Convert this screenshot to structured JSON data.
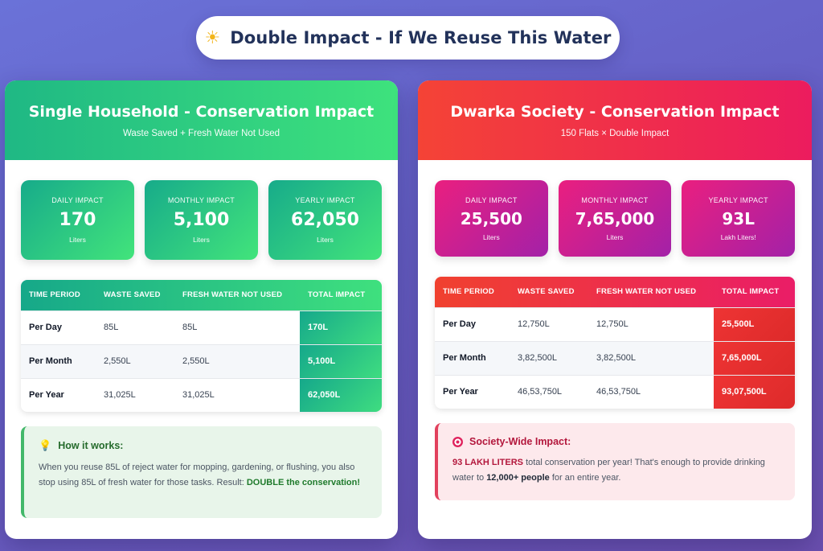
{
  "banner": {
    "title": "Double Impact - If We Reuse This Water",
    "icon": "sun-icon"
  },
  "household": {
    "title": "Single Household - Conservation Impact",
    "subtitle": "Waste Saved + Fresh Water Not Used",
    "stats": [
      {
        "label": "DAILY IMPACT",
        "value": "170",
        "unit": "Liters"
      },
      {
        "label": "MONTHLY IMPACT",
        "value": "5,100",
        "unit": "Liters"
      },
      {
        "label": "YEARLY IMPACT",
        "value": "62,050",
        "unit": "Liters"
      }
    ],
    "table": {
      "headers": [
        "TIME PERIOD",
        "WASTE SAVED",
        "FRESH WATER NOT USED",
        "TOTAL IMPACT"
      ],
      "rows": [
        [
          "Per Day",
          "85L",
          "85L",
          "170L"
        ],
        [
          "Per Month",
          "2,550L",
          "2,550L",
          "5,100L"
        ],
        [
          "Per Year",
          "31,025L",
          "31,025L",
          "62,050L"
        ]
      ]
    },
    "note": {
      "icon": "lightbulb-icon",
      "title": "How it works:",
      "text": "When you reuse 85L of reject water for mopping, gardening, or flushing, you also stop using 85L of fresh water for those tasks. Result: ",
      "strong": "DOUBLE the conservation!"
    }
  },
  "society": {
    "title": "Dwarka Society - Conservation Impact",
    "subtitle": "150 Flats × Double Impact",
    "stats": [
      {
        "label": "DAILY IMPACT",
        "value": "25,500",
        "unit": "Liters"
      },
      {
        "label": "MONTHLY IMPACT",
        "value": "7,65,000",
        "unit": "Liters"
      },
      {
        "label": "YEARLY IMPACT",
        "value": "93L",
        "unit": "Lakh Liters!"
      }
    ],
    "table": {
      "headers": [
        "TIME PERIOD",
        "WASTE SAVED",
        "FRESH WATER NOT USED",
        "TOTAL IMPACT"
      ],
      "rows": [
        [
          "Per Day",
          "12,750L",
          "12,750L",
          "25,500L"
        ],
        [
          "Per Month",
          "3,82,500L",
          "3,82,500L",
          "7,65,000L"
        ],
        [
          "Per Year",
          "46,53,750L",
          "46,53,750L",
          "93,07,500L"
        ]
      ]
    },
    "note": {
      "icon": "target-icon",
      "title": "Society-Wide Impact:",
      "strong1": "93 LAKH LITERS",
      "text1": " total conservation per year! That's enough to provide drinking water to ",
      "strong2": "12,000+ people",
      "text2": " for an entire year."
    }
  }
}
